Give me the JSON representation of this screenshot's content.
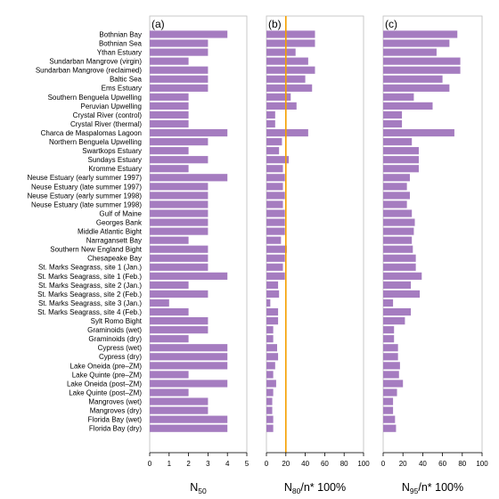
{
  "chart_data": [
    {
      "type": "bar",
      "orientation": "horizontal",
      "panel_label": "(a)",
      "xlabel": {
        "main": "N",
        "sub": "50",
        "suffix": ""
      },
      "xlim": [
        0,
        5
      ],
      "xticks": [
        0,
        1,
        2,
        3,
        4,
        5
      ],
      "grid": false,
      "bar_color": "#a57cc0",
      "categories": [
        "Bothnian Bay",
        "Bothnian Sea",
        "Ythan Estuary",
        "Sundarban Mangrove (virgin)",
        "Sundarban Mangrove (reclaimed)",
        "Baltic Sea",
        "Ems Estuary",
        "Southern Benguela Upwelling",
        "Peruvian Upwelling",
        "Crystal River (control)",
        "Crystal River (thermal)",
        "Charca de Maspalomas Lagoon",
        "Northern Benguela Upwelling",
        "Swartkops Estuary",
        "Sundays Estuary",
        "Kromme Estuary",
        "Neuse Estuary (early summer 1997)",
        "Neuse Estuary (late summer 1997)",
        "Neuse Estuary (early summer 1998)",
        "Neuse Estuary (late summer 1998)",
        "Gulf of Maine",
        "Georges Bank",
        "Middle Atlantic Bight",
        "Narragansett Bay",
        "Southern New England Bight",
        "Chesapeake Bay",
        "St. Marks Seagrass, site 1 (Jan.)",
        "St. Marks Seagrass, site 1 (Feb.)",
        "St. Marks Seagrass, site 2 (Jan.)",
        "St. Marks Seagrass, site 2 (Feb.)",
        "St. Marks Seagrass, site 3 (Jan.)",
        "St. Marks Seagrass, site 4 (Feb.)",
        "Sylt Romo Bight",
        "Graminoids (wet)",
        "Graminoids (dry)",
        "Cypress (wet)",
        "Cypress (dry)",
        "Lake Oneida (pre–ZM)",
        "Lake Quinte (pre–ZM)",
        "Lake Oneida (post–ZM)",
        "Lake Quinte (post–ZM)",
        "Mangroves (wet)",
        "Mangroves (dry)",
        "Florida Bay (wet)",
        "Florida Bay (dry)"
      ],
      "values": [
        4,
        3,
        3,
        2,
        3,
        3,
        3,
        2,
        2,
        2,
        2,
        4,
        3,
        2,
        3,
        2,
        4,
        3,
        3,
        3,
        3,
        3,
        3,
        2,
        3,
        3,
        3,
        4,
        2,
        3,
        1,
        2,
        3,
        3,
        2,
        4,
        4,
        4,
        2,
        4,
        2,
        3,
        3,
        4,
        4
      ]
    },
    {
      "type": "bar",
      "orientation": "horizontal",
      "panel_label": "(b)",
      "xlabel": {
        "main": "N",
        "sub": "80",
        "suffix": "/n* 100%"
      },
      "xlim": [
        0,
        100
      ],
      "xticks": [
        0,
        20,
        40,
        60,
        80,
        100
      ],
      "grid": false,
      "bar_color": "#a57cc0",
      "reference_line": {
        "x": 20,
        "color": "#f5a000"
      },
      "values": [
        50,
        50,
        30,
        43,
        50,
        40,
        47,
        25,
        31,
        9,
        9,
        43,
        16,
        13,
        23,
        17,
        19,
        17,
        19,
        17,
        19,
        19,
        19,
        15,
        21,
        19,
        17,
        19,
        12,
        13,
        4,
        12,
        12,
        7,
        7,
        11,
        12,
        9,
        7,
        10,
        7,
        6,
        6,
        7,
        7
      ]
    },
    {
      "type": "bar",
      "orientation": "horizontal",
      "panel_label": "(c)",
      "xlabel": {
        "main": "N",
        "sub": "95",
        "suffix": "/n* 100%"
      },
      "xlim": [
        0,
        100
      ],
      "xticks": [
        0,
        20,
        40,
        60,
        80,
        100
      ],
      "grid": false,
      "bar_color": "#a57cc0",
      "values": [
        75,
        67,
        54,
        78,
        78,
        60,
        67,
        31,
        50,
        19,
        19,
        72,
        29,
        36,
        36,
        36,
        27,
        24,
        27,
        24,
        29,
        32,
        31,
        29,
        30,
        33,
        33,
        39,
        28,
        37,
        10,
        28,
        22,
        11,
        11,
        15,
        15,
        17,
        16,
        20,
        14,
        10,
        10,
        12,
        13
      ]
    }
  ]
}
